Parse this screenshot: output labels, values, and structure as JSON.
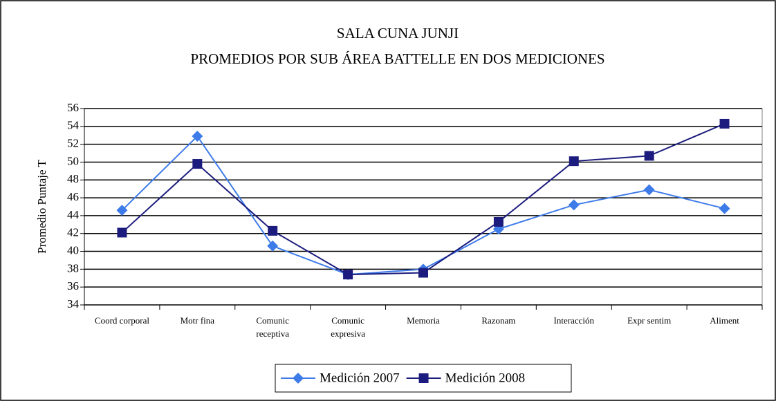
{
  "chart_data": {
    "type": "line",
    "title": "SALA CUNA JUNJI",
    "subtitle": "PROMEDIOS POR SUB ÁREA BATTELLE EN DOS MEDICIONES",
    "ylabel": "Promedio Puntaje T",
    "categories": [
      "Coord corporal",
      "Motr fina",
      "Comunic\nreceptiva",
      "Comunic\nexpresiva",
      "Memoria",
      "Razonam",
      "Interacción",
      "Expr sentim",
      "Aliment"
    ],
    "series": [
      {
        "name": "Medición 2007",
        "color": "#3d7be8",
        "marker": "diamond",
        "values": [
          44.6,
          52.9,
          40.6,
          37.4,
          38.0,
          42.5,
          45.2,
          46.9,
          44.8
        ]
      },
      {
        "name": "Medición 2008",
        "color": "#1c1c7e",
        "marker": "square",
        "values": [
          42.1,
          49.8,
          42.3,
          37.4,
          37.6,
          43.3,
          50.1,
          50.7,
          54.3
        ]
      }
    ],
    "ylim": [
      34,
      56
    ],
    "yticks": [
      34,
      36,
      38,
      40,
      42,
      44,
      46,
      48,
      50,
      52,
      54,
      56
    ],
    "grid": true,
    "legend": "bottom"
  }
}
